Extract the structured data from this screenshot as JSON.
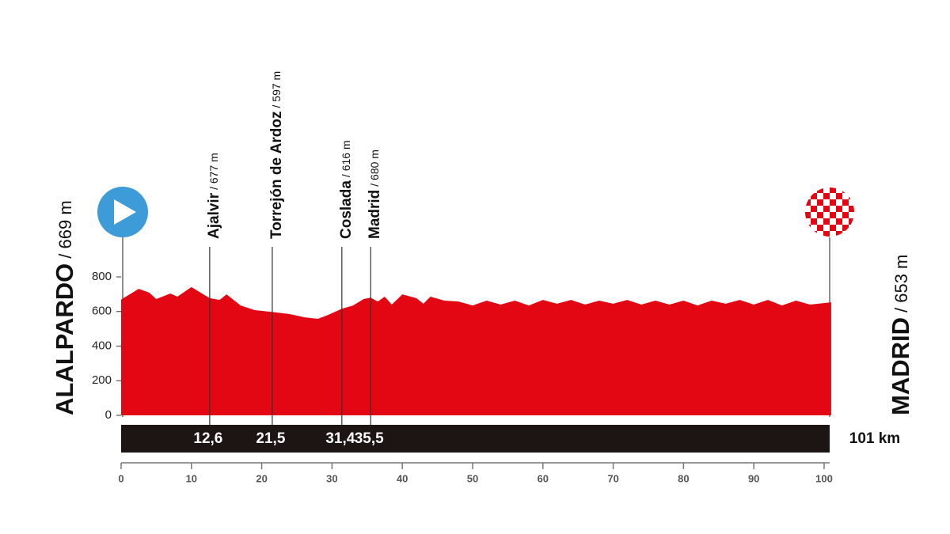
{
  "chart_data": {
    "type": "area",
    "start": {
      "name": "ALALPARDO",
      "altitude": "/ 669 m"
    },
    "finish": {
      "name": "MADRID",
      "altitude": "/ 653 m",
      "distance": "101 km"
    },
    "waypoints": [
      {
        "name": "Ajalvir",
        "altitude": "/ 677 m",
        "km": {
          "value": 12.6,
          "label": "12,6"
        }
      },
      {
        "name": "Torrejón de Ardoz",
        "altitude": "/ 597 m",
        "km": {
          "value": 21.5,
          "label": "21,5"
        }
      },
      {
        "name": "Coslada",
        "altitude": "/ 616 m",
        "km": {
          "value": 31.4,
          "label": "31,4"
        }
      },
      {
        "name": "Madrid",
        "altitude": "/ 680 m",
        "km": {
          "value": 35.5,
          "label": "35,5"
        }
      }
    ],
    "x": [
      0,
      2.5,
      4,
      5,
      7,
      8,
      10,
      12.6,
      14,
      15,
      17,
      19,
      21.5,
      24,
      26,
      28,
      29.5,
      31.4,
      33,
      34.5,
      35.5,
      36.5,
      37.5,
      38.5,
      40,
      42,
      43,
      44,
      46,
      48,
      50,
      52,
      54,
      56,
      58,
      60,
      62,
      64,
      66,
      68,
      70,
      72,
      74,
      76,
      78,
      80,
      82,
      84,
      86,
      88,
      90,
      92,
      94,
      96,
      98,
      101
    ],
    "values": [
      669,
      731,
      709,
      672,
      704,
      686,
      741,
      677,
      667,
      699,
      635,
      608,
      597,
      585,
      567,
      558,
      581,
      616,
      635,
      672,
      680,
      658,
      686,
      640,
      699,
      677,
      645,
      686,
      663,
      658,
      635,
      663,
      640,
      663,
      635,
      667,
      645,
      667,
      640,
      663,
      645,
      667,
      640,
      663,
      640,
      663,
      635,
      663,
      645,
      667,
      640,
      667,
      635,
      663,
      640,
      653
    ],
    "color": "#e30613",
    "xlim": [
      0,
      101
    ],
    "ylim": [
      0,
      800
    ],
    "xticks": [
      0,
      10,
      20,
      30,
      40,
      50,
      60,
      70,
      80,
      90,
      100
    ],
    "yticks": [
      0,
      200,
      400,
      600,
      800
    ]
  }
}
